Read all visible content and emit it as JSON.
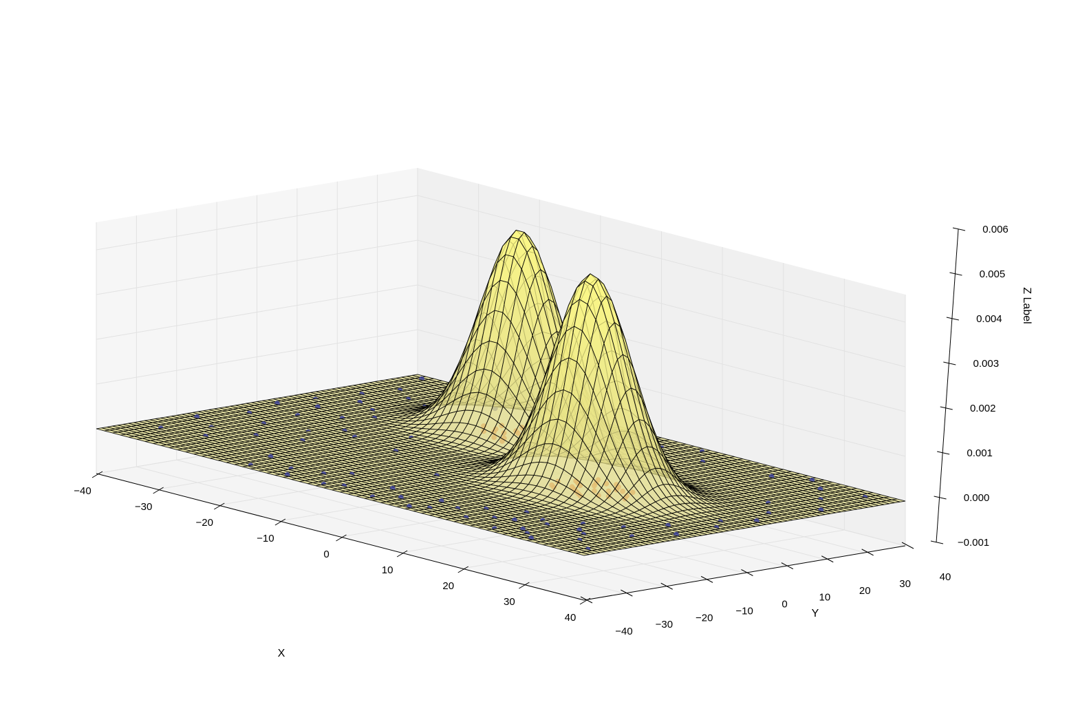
{
  "chart_data": {
    "type": "surface3d",
    "title": "",
    "xlabel": "X",
    "ylabel": "Y",
    "zlabel": "Z Label",
    "xlim": [
      -40,
      40
    ],
    "ylim": [
      -40,
      40
    ],
    "zlim": [
      -0.001,
      0.006
    ],
    "x_ticks": [
      "−40",
      "−30",
      "−20",
      "−10",
      "0",
      "10",
      "20",
      "30",
      "40"
    ],
    "y_ticks": [
      "−40",
      "−30",
      "−20",
      "−10",
      "0",
      "10",
      "20",
      "30",
      "40"
    ],
    "z_ticks": [
      "−0.001",
      "0.000",
      "0.001",
      "0.002",
      "0.003",
      "0.004",
      "0.005",
      "0.006"
    ],
    "grid": true,
    "colors": {
      "surface": "#f2ec8c",
      "wire": "#000000",
      "pane_back": "#f0f0f0",
      "pane_side": "#f6f6f6",
      "pane_floor": "#f4f4f4",
      "grid": "#e2e2e2",
      "points_outer": "#3a3f9e",
      "points_inner": "#e8531c"
    },
    "gaussians": [
      {
        "name": "",
        "x0": -10,
        "y0": 20,
        "sigma": 5.5,
        "amplitude": 0.0046
      },
      {
        "name": "",
        "x0": 15,
        "y0": 0,
        "sigma": 5.5,
        "amplitude": 0.0048
      }
    ],
    "inner_points": [
      [
        -13,
        18
      ],
      [
        -12,
        22
      ],
      [
        -9,
        24
      ],
      [
        -7,
        21
      ],
      [
        -8,
        17
      ],
      [
        -11,
        15
      ],
      [
        -14,
        20
      ],
      [
        -10,
        26
      ],
      [
        -6,
        18
      ],
      [
        -15,
        23
      ],
      [
        -9,
        14
      ],
      [
        -12,
        19
      ],
      [
        -7,
        24
      ],
      [
        -11,
        21
      ],
      [
        -13,
        25
      ],
      [
        -8,
        20
      ],
      [
        -5,
        22
      ],
      [
        -10,
        16
      ],
      [
        -14,
        17
      ],
      [
        -6,
        25
      ],
      [
        -12,
        24
      ],
      [
        -9,
        19
      ],
      [
        -11,
        27
      ],
      [
        -7,
        15
      ],
      [
        -16,
        20
      ],
      [
        -8,
        23
      ],
      [
        11,
        2
      ],
      [
        14,
        -3
      ],
      [
        17,
        1
      ],
      [
        13,
        4
      ],
      [
        19,
        -2
      ],
      [
        12,
        -5
      ],
      [
        16,
        5
      ],
      [
        18,
        3
      ],
      [
        10,
        -1
      ],
      [
        15,
        -4
      ],
      [
        20,
        1
      ],
      [
        13,
        -2
      ],
      [
        17,
        -6
      ],
      [
        12,
        6
      ],
      [
        16,
        -1
      ],
      [
        19,
        4
      ],
      [
        14,
        2
      ],
      [
        11,
        -4
      ],
      [
        18,
        -3
      ],
      [
        15,
        6
      ],
      [
        21,
        -1
      ],
      [
        13,
        0
      ],
      [
        17,
        3
      ],
      [
        12,
        1
      ],
      [
        16,
        -5
      ],
      [
        14,
        5
      ]
    ],
    "outer_points": [
      [
        -38,
        38
      ],
      [
        -35,
        28
      ],
      [
        -30,
        36
      ],
      [
        -28,
        30
      ],
      [
        -25,
        38
      ],
      [
        -22,
        32
      ],
      [
        -36,
        20
      ],
      [
        -33,
        15
      ],
      [
        -31,
        24
      ],
      [
        -27,
        22
      ],
      [
        -24,
        34
      ],
      [
        -20,
        37
      ],
      [
        -37,
        10
      ],
      [
        -34,
        6
      ],
      [
        -29,
        12
      ],
      [
        -26,
        8
      ],
      [
        -38,
        2
      ],
      [
        -32,
        -2
      ],
      [
        -28,
        3
      ],
      [
        -23,
        -4
      ],
      [
        -36,
        -8
      ],
      [
        -31,
        -12
      ],
      [
        -25,
        -10
      ],
      [
        -20,
        -6
      ],
      [
        -38,
        -18
      ],
      [
        -33,
        -22
      ],
      [
        -27,
        -20
      ],
      [
        -22,
        -16
      ],
      [
        -18,
        -30
      ],
      [
        -12,
        -34
      ],
      [
        -6,
        -28
      ],
      [
        -2,
        -36
      ],
      [
        2,
        -30
      ],
      [
        6,
        -34
      ],
      [
        10,
        -38
      ],
      [
        14,
        -32
      ],
      [
        18,
        -36
      ],
      [
        22,
        -30
      ],
      [
        26,
        -34
      ],
      [
        30,
        -38
      ],
      [
        34,
        -32
      ],
      [
        38,
        -36
      ],
      [
        -16,
        -38
      ],
      [
        -10,
        -38
      ],
      [
        -4,
        -38
      ],
      [
        4,
        -38
      ],
      [
        12,
        -36
      ],
      [
        24,
        -38
      ],
      [
        30,
        -26
      ],
      [
        36,
        -22
      ],
      [
        32,
        -18
      ],
      [
        38,
        -14
      ],
      [
        28,
        -22
      ],
      [
        34,
        -10
      ],
      [
        26,
        -28
      ],
      [
        20,
        -24
      ],
      [
        38,
        6
      ],
      [
        36,
        12
      ],
      [
        32,
        18
      ],
      [
        38,
        22
      ],
      [
        34,
        28
      ],
      [
        30,
        34
      ],
      [
        26,
        38
      ],
      [
        22,
        34
      ],
      [
        36,
        36
      ],
      [
        4,
        34
      ],
      [
        0,
        38
      ],
      [
        -4,
        36
      ],
      [
        8,
        38
      ],
      [
        12,
        32
      ],
      [
        -16,
        2
      ],
      [
        -12,
        -8
      ],
      [
        0,
        -16
      ],
      [
        -4,
        30
      ],
      [
        6,
        28
      ],
      [
        36,
        0
      ],
      [
        38,
        -4
      ],
      [
        32,
        -28
      ],
      [
        28,
        -36
      ],
      [
        -8,
        -32
      ],
      [
        16,
        -28
      ],
      [
        24,
        -26
      ],
      [
        -30,
        -28
      ],
      [
        -36,
        -30
      ],
      [
        10,
        -30
      ],
      [
        20,
        -32
      ]
    ]
  }
}
